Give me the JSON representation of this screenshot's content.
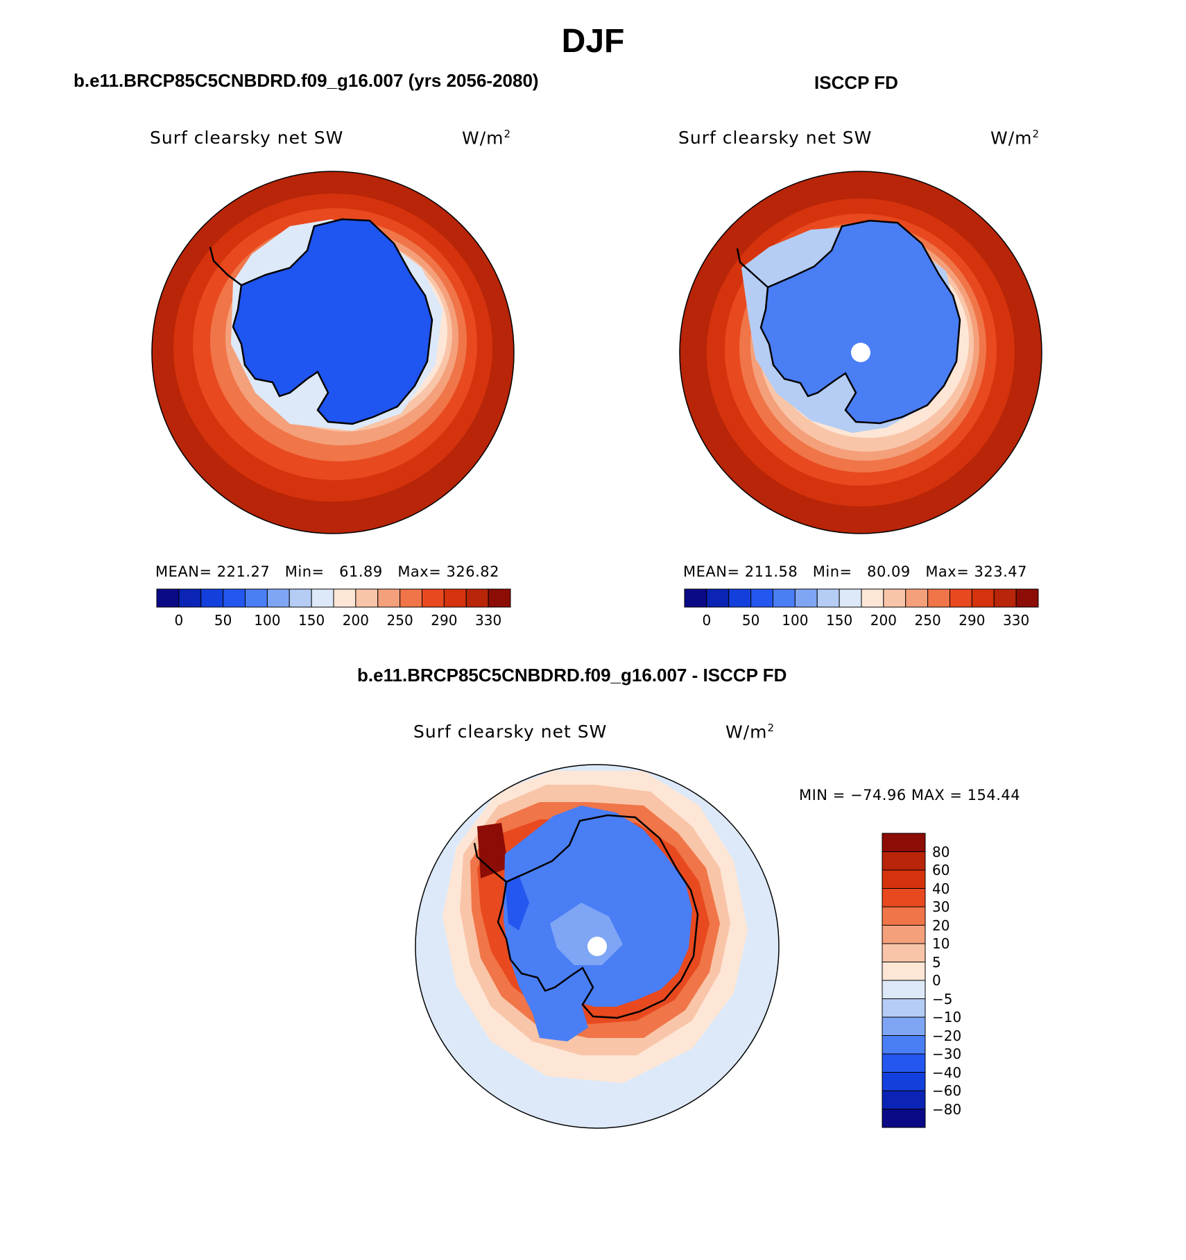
{
  "title": "DJF",
  "panels": {
    "model": {
      "subtitle": "b.e11.BRCP85C5CNBDRD.f09_g16.007 (yrs 2056-2080)",
      "variable": "Surf clearsky net SW",
      "units": "W/m",
      "units_sup": "2",
      "stats": {
        "mean_label": "MEAN=",
        "mean": "221.27",
        "min_label": "Min=",
        "min": "61.89",
        "max_label": "Max=",
        "max": "326.82"
      }
    },
    "obs": {
      "subtitle": "ISCCP FD",
      "variable": "Surf clearsky net SW",
      "units": "W/m",
      "units_sup": "2",
      "stats": {
        "mean_label": "MEAN=",
        "mean": "211.58",
        "min_label": "Min=",
        "min": "80.09",
        "max_label": "Max=",
        "max": "323.47"
      }
    },
    "diff": {
      "subtitle": "b.e11.BRCP85C5CNBDRD.f09_g16.007 - ISCCP FD",
      "variable": "Surf clearsky net SW",
      "units": "W/m",
      "units_sup": "2",
      "minmax": "MIN = −74.96 MAX = 154.44"
    }
  },
  "colorbars": {
    "absolute": {
      "labels": [
        "0",
        "50",
        "100",
        "150",
        "200",
        "250",
        "290",
        "330"
      ],
      "colors": [
        "#0a0a87",
        "#0b24b5",
        "#1340dd",
        "#2457f0",
        "#4a7ef5",
        "#7ea6f5",
        "#b5cdf5",
        "#dde9f8",
        "#fde6d6",
        "#f9c5a8",
        "#f4a07b",
        "#f07548",
        "#e8491f",
        "#d5330d",
        "#b82508",
        "#8c0d05"
      ]
    },
    "difference": {
      "labels": [
        "80",
        "60",
        "40",
        "30",
        "20",
        "10",
        "5",
        "0",
        "−5",
        "−10",
        "−20",
        "−30",
        "−40",
        "−60",
        "−80"
      ],
      "colors": [
        "#8c0d05",
        "#b82508",
        "#d5330d",
        "#e8491f",
        "#f07548",
        "#f4a07b",
        "#f9c5a8",
        "#fde6d6",
        "#dde9f8",
        "#b5cdf5",
        "#7ea6f5",
        "#4a7ef5",
        "#2457f0",
        "#1340dd",
        "#0b24b5",
        "#0a0a87"
      ]
    }
  },
  "colors": {
    "land_blue_model": "#1f55f0",
    "land_blue_obs": "#4a7ef5",
    "ocean_outer": "#b82508"
  }
}
